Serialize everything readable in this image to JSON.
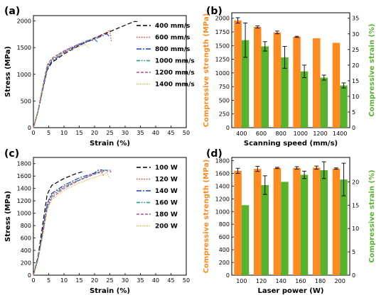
{
  "chart_data": [
    {
      "panel_label": "(a)",
      "type": "line",
      "xlabel": "Strain (%)",
      "ylabel": "Stress (MPa)",
      "xlim": [
        0,
        50
      ],
      "ylim": [
        0,
        2100
      ],
      "x_ticks": [
        "0",
        "5",
        "10",
        "15",
        "20",
        "25",
        "30",
        "35",
        "40",
        "45",
        "50"
      ],
      "y_ticks": [
        "0",
        "500",
        "1000",
        "1500",
        "2000"
      ],
      "legend_position": "right",
      "series": [
        {
          "name": "400 mm/s",
          "color": "#000000",
          "dash": "6,3",
          "points": [
            [
              0,
              0
            ],
            [
              1.5,
              300
            ],
            [
              3,
              700
            ],
            [
              4.5,
              1080
            ],
            [
              6,
              1220
            ],
            [
              10,
              1380
            ],
            [
              15,
              1540
            ],
            [
              20,
              1680
            ],
            [
              25,
              1800
            ],
            [
              30,
              1920
            ],
            [
              33,
              1990
            ],
            [
              34,
              1990
            ]
          ]
        },
        {
          "name": "600 mm/s",
          "color": "#e0403a",
          "dash": "1.5,2",
          "points": [
            [
              0,
              0
            ],
            [
              1.5,
              320
            ],
            [
              3,
              750
            ],
            [
              4.5,
              1150
            ],
            [
              6,
              1280
            ],
            [
              10,
              1430
            ],
            [
              15,
              1560
            ],
            [
              20,
              1680
            ],
            [
              24,
              1790
            ],
            [
              25,
              1830
            ],
            [
              25.5,
              1600
            ]
          ]
        },
        {
          "name": "800 mm/s",
          "color": "#1f3fbf",
          "dash": "7,2,2,2",
          "points": [
            [
              0,
              0
            ],
            [
              1.5,
              300
            ],
            [
              3,
              700
            ],
            [
              4.5,
              1100
            ],
            [
              6,
              1240
            ],
            [
              10,
              1410
            ],
            [
              15,
              1550
            ],
            [
              20,
              1660
            ],
            [
              23,
              1730
            ],
            [
              24,
              1760
            ],
            [
              25,
              1700
            ]
          ]
        },
        {
          "name": "1000 mm/s",
          "color": "#169c8c",
          "dash": "5,2,1.5,2,1.5,2",
          "points": [
            [
              0,
              0
            ],
            [
              1.5,
              310
            ],
            [
              3,
              720
            ],
            [
              4.5,
              1130
            ],
            [
              6,
              1270
            ],
            [
              10,
              1440
            ],
            [
              15,
              1570
            ],
            [
              18,
              1640
            ],
            [
              20,
              1660
            ],
            [
              21,
              1600
            ]
          ]
        },
        {
          "name": "1200 mm/s",
          "color": "#b0509a",
          "dash": "4,2",
          "points": [
            [
              0,
              0
            ],
            [
              1.5,
              320
            ],
            [
              3,
              760
            ],
            [
              4.5,
              1170
            ],
            [
              6,
              1300
            ],
            [
              10,
              1440
            ],
            [
              15,
              1570
            ],
            [
              19,
              1640
            ],
            [
              20,
              1620
            ]
          ]
        },
        {
          "name": "1400 mm/s",
          "color": "#c8b020",
          "dash": "1,1.5",
          "points": [
            [
              0,
              0
            ],
            [
              1.5,
              310
            ],
            [
              3,
              730
            ],
            [
              4.5,
              1140
            ],
            [
              6,
              1270
            ],
            [
              10,
              1400
            ],
            [
              14,
              1500
            ],
            [
              17,
              1560
            ],
            [
              18,
              1500
            ]
          ]
        }
      ]
    },
    {
      "panel_label": "(b)",
      "type": "bar",
      "xlabel": "Scanning speed (mm/s)",
      "ylabel_left": "Compressive strength (MPa)",
      "ylabel_right": "Compressive strain (%)",
      "categories": [
        "400",
        "600",
        "800",
        "1000",
        "1200",
        "1400"
      ],
      "ylim_left": [
        0,
        2100
      ],
      "ylim_right": [
        0,
        36.75
      ],
      "y_ticks_left": [
        "0",
        "250",
        "500",
        "750",
        "1000",
        "1250",
        "1500",
        "1750",
        "2000"
      ],
      "y_ticks_right": [
        "0",
        "5",
        "10",
        "15",
        "20",
        "25",
        "30",
        "35"
      ],
      "series": [
        {
          "axis": "left",
          "color": "#ff8a1f",
          "values": [
            1960,
            1840,
            1740,
            1660,
            1635,
            1550
          ],
          "errors": [
            50,
            20,
            25,
            10,
            0,
            0
          ]
        },
        {
          "axis": "right",
          "color": "#58b32c",
          "values": [
            28,
            26,
            22.5,
            18,
            16,
            13.5
          ],
          "errors": [
            5.5,
            1.5,
            3.5,
            2,
            0.8,
            0.8
          ]
        }
      ]
    },
    {
      "panel_label": "(c)",
      "type": "line",
      "xlabel": "Strain (%)",
      "ylabel": "Stress (MPa)",
      "xlim": [
        0,
        50
      ],
      "ylim": [
        0,
        1900
      ],
      "x_ticks": [
        "0",
        "5",
        "10",
        "15",
        "20",
        "25",
        "30",
        "35",
        "40",
        "45",
        "50"
      ],
      "y_ticks": [
        "0",
        "200",
        "400",
        "600",
        "800",
        "1000",
        "1200",
        "1400",
        "1600",
        "1800"
      ],
      "legend_position": "right",
      "series": [
        {
          "name": "100 W",
          "color": "#000000",
          "dash": "6,3",
          "points": [
            [
              0,
              0
            ],
            [
              1.5,
              300
            ],
            [
              3,
              800
            ],
            [
              4.5,
              1300
            ],
            [
              6,
              1450
            ],
            [
              10,
              1560
            ],
            [
              14,
              1640
            ],
            [
              16,
              1670
            ]
          ]
        },
        {
          "name": "120 W",
          "color": "#e0403a",
          "dash": "1.5,2",
          "points": [
            [
              0,
              0
            ],
            [
              1.5,
              280
            ],
            [
              3,
              700
            ],
            [
              4.5,
              1150
            ],
            [
              6,
              1300
            ],
            [
              10,
              1430
            ],
            [
              15,
              1540
            ],
            [
              20,
              1640
            ],
            [
              22,
              1680
            ],
            [
              23,
              1600
            ]
          ]
        },
        {
          "name": "140 W",
          "color": "#1f3fbf",
          "dash": "7,2,2,2",
          "points": [
            [
              0,
              0
            ],
            [
              1.5,
              280
            ],
            [
              3,
              700
            ],
            [
              4.5,
              1150
            ],
            [
              6,
              1320
            ],
            [
              10,
              1450
            ],
            [
              15,
              1570
            ],
            [
              20,
              1650
            ],
            [
              21,
              1690
            ],
            [
              22,
              1700
            ],
            [
              23,
              1690
            ]
          ]
        },
        {
          "name": "160 W",
          "color": "#169c8c",
          "dash": "5,2,1.5,2,1.5,2",
          "points": [
            [
              0,
              0
            ],
            [
              1.5,
              270
            ],
            [
              3,
              680
            ],
            [
              4.5,
              1100
            ],
            [
              6,
              1280
            ],
            [
              10,
              1420
            ],
            [
              15,
              1540
            ],
            [
              20,
              1640
            ],
            [
              23,
              1690
            ],
            [
              24,
              1700
            ],
            [
              24.5,
              1650
            ]
          ]
        },
        {
          "name": "180 W",
          "color": "#b0509a",
          "dash": "4,2",
          "points": [
            [
              0,
              0
            ],
            [
              1.5,
              260
            ],
            [
              3,
              650
            ],
            [
              4.5,
              1080
            ],
            [
              6,
              1250
            ],
            [
              10,
              1400
            ],
            [
              15,
              1530
            ],
            [
              20,
              1630
            ],
            [
              24,
              1690
            ],
            [
              25,
              1700
            ],
            [
              25.5,
              1640
            ]
          ]
        },
        {
          "name": "200 W",
          "color": "#c8b020",
          "dash": "1,1.5",
          "points": [
            [
              0,
              0
            ],
            [
              1.5,
              250
            ],
            [
              3,
              620
            ],
            [
              4.5,
              1040
            ],
            [
              6,
              1220
            ],
            [
              10,
              1370
            ],
            [
              15,
              1490
            ],
            [
              20,
              1580
            ],
            [
              23,
              1630
            ],
            [
              24,
              1660
            ],
            [
              25,
              1560
            ]
          ]
        }
      ]
    },
    {
      "panel_label": "(d)",
      "type": "bar",
      "xlabel": "Laser power (W)",
      "ylabel_left": "Compressive strength (MPa)",
      "ylabel_right": "Compressive strain (%)",
      "categories": [
        "100",
        "120",
        "140",
        "160",
        "180",
        "200"
      ],
      "ylim_left": [
        0,
        1850
      ],
      "ylim_right": [
        0,
        25.23
      ],
      "y_ticks_left": [
        "0",
        "200",
        "400",
        "600",
        "800",
        "1000",
        "1200",
        "1400",
        "1600",
        "1800"
      ],
      "y_ticks_right": [
        "0",
        "5",
        "10",
        "15",
        "20"
      ],
      "series": [
        {
          "axis": "left",
          "color": "#ff8a1f",
          "values": [
            1640,
            1670,
            1685,
            1685,
            1690,
            1675
          ],
          "errors": [
            40,
            40,
            10,
            20,
            25,
            10
          ]
        },
        {
          "axis": "right",
          "color": "#58b32c",
          "values": [
            15,
            19.3,
            20,
            21.5,
            22.5,
            20.5
          ],
          "errors": [
            0,
            2,
            0,
            0.8,
            1.8,
            3.5
          ]
        }
      ]
    }
  ]
}
